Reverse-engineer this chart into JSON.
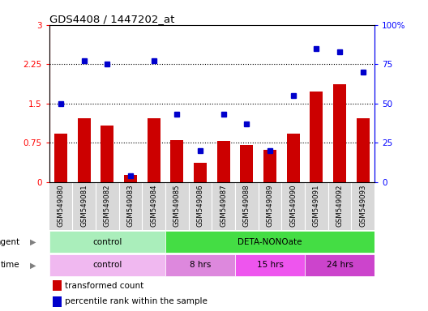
{
  "title": "GDS4408 / 1447202_at",
  "samples": [
    "GSM549080",
    "GSM549081",
    "GSM549082",
    "GSM549083",
    "GSM549084",
    "GSM549085",
    "GSM549086",
    "GSM549087",
    "GSM549088",
    "GSM549089",
    "GSM549090",
    "GSM549091",
    "GSM549092",
    "GSM549093"
  ],
  "bar_values": [
    0.93,
    1.22,
    1.07,
    0.13,
    1.22,
    0.8,
    0.37,
    0.78,
    0.7,
    0.62,
    0.93,
    1.72,
    1.87,
    1.22
  ],
  "dot_values": [
    50,
    77,
    75,
    4,
    77,
    43,
    20,
    43,
    37,
    20,
    55,
    85,
    83,
    70
  ],
  "ylim_left": [
    0,
    3
  ],
  "ylim_right": [
    0,
    100
  ],
  "yticks_left": [
    0,
    0.75,
    1.5,
    2.25,
    3
  ],
  "yticks_right": [
    0,
    25,
    50,
    75,
    100
  ],
  "ytick_labels_left": [
    "0",
    "0.75",
    "1.5",
    "2.25",
    "3"
  ],
  "ytick_labels_right": [
    "0",
    "25",
    "50",
    "75",
    "100%"
  ],
  "hlines": [
    0.75,
    1.5,
    2.25
  ],
  "bar_color": "#cc0000",
  "dot_color": "#0000cc",
  "agent_labels": [
    {
      "text": "control",
      "start": 0,
      "end": 5,
      "color": "#aaeebb"
    },
    {
      "text": "DETA-NONOate",
      "start": 5,
      "end": 14,
      "color": "#44dd44"
    }
  ],
  "time_labels": [
    {
      "text": "control",
      "start": 0,
      "end": 5,
      "color": "#f0b8f0"
    },
    {
      "text": "8 hrs",
      "start": 5,
      "end": 8,
      "color": "#dd88dd"
    },
    {
      "text": "15 hrs",
      "start": 8,
      "end": 11,
      "color": "#ee55ee"
    },
    {
      "text": "24 hrs",
      "start": 11,
      "end": 14,
      "color": "#cc44cc"
    }
  ],
  "legend_items": [
    {
      "label": "transformed count",
      "color": "#cc0000"
    },
    {
      "label": "percentile rank within the sample",
      "color": "#0000cc"
    }
  ],
  "sample_bg": "#d8d8d8",
  "plot_bg": "#ffffff"
}
